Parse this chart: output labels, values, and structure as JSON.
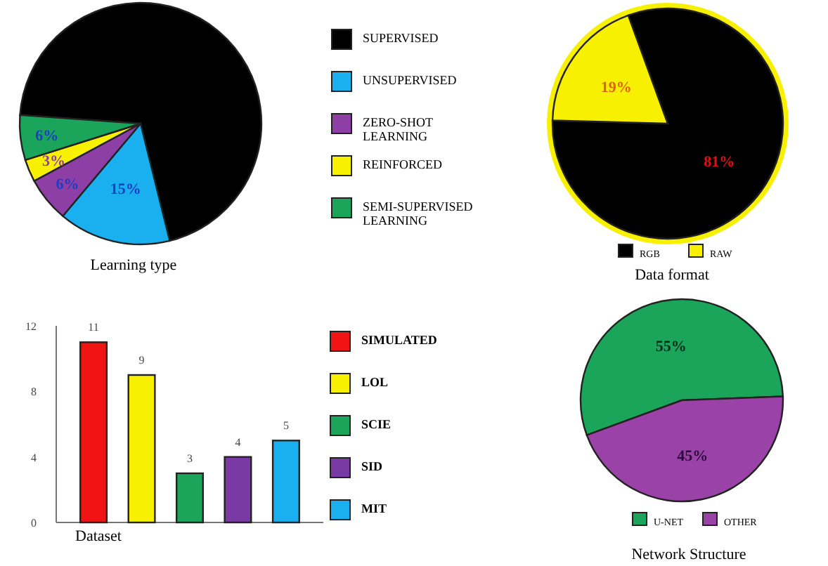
{
  "chart_data": [
    {
      "type": "pie",
      "title": "Learning type",
      "categories": [
        "SUPERVISED",
        "UNSUPERVISED",
        "ZERO-SHOT LEARNING",
        "REINFORCED",
        "SEMI-SUPERVISED LEARNING"
      ],
      "values": [
        70,
        15,
        6,
        3,
        6
      ],
      "colors": [
        "#000000",
        "#1ab0ef",
        "#8e3fa6",
        "#f7f000",
        "#1aa55a"
      ],
      "value_labels": [
        null,
        "15%",
        "6%",
        "3%",
        "6%"
      ],
      "legend": "right"
    },
    {
      "type": "pie",
      "title": "Data format",
      "categories": [
        "RGB",
        "RAW"
      ],
      "values": [
        81,
        19
      ],
      "colors": [
        "#000000",
        "#f7f000"
      ],
      "value_labels": [
        "81%",
        "19%"
      ],
      "legend": "bottom"
    },
    {
      "type": "bar",
      "xlabel": "Dataset",
      "categories": [
        null,
        null,
        null,
        null,
        null
      ],
      "series": [
        {
          "name": "SIMULATED",
          "color": "#f01414",
          "values": [
            11,
            null,
            null,
            null,
            null
          ]
        },
        {
          "name": "LOL",
          "color": "#f7f000",
          "values": [
            null,
            9,
            null,
            null,
            null
          ]
        },
        {
          "name": "SCIE",
          "color": "#1aa55a",
          "values": [
            null,
            null,
            3,
            null,
            null
          ]
        },
        {
          "name": "SID",
          "color": "#7a3aa6",
          "values": [
            null,
            null,
            null,
            4,
            null
          ]
        },
        {
          "name": "MIT",
          "color": "#1ab0ef",
          "values": [
            null,
            null,
            null,
            null,
            5
          ]
        }
      ],
      "ylim": [
        0,
        12
      ],
      "yticks": [
        0,
        4,
        8,
        12
      ],
      "data_labels": true,
      "tick_labels": "y",
      "legend": "right"
    },
    {
      "type": "pie",
      "title": "Network Structure",
      "categories": [
        "U-NET",
        "OTHER"
      ],
      "values": [
        55,
        45
      ],
      "colors": [
        "#1aa55a",
        "#9a42a8"
      ],
      "value_labels": [
        "55%",
        "45%"
      ],
      "legend": "bottom"
    }
  ]
}
